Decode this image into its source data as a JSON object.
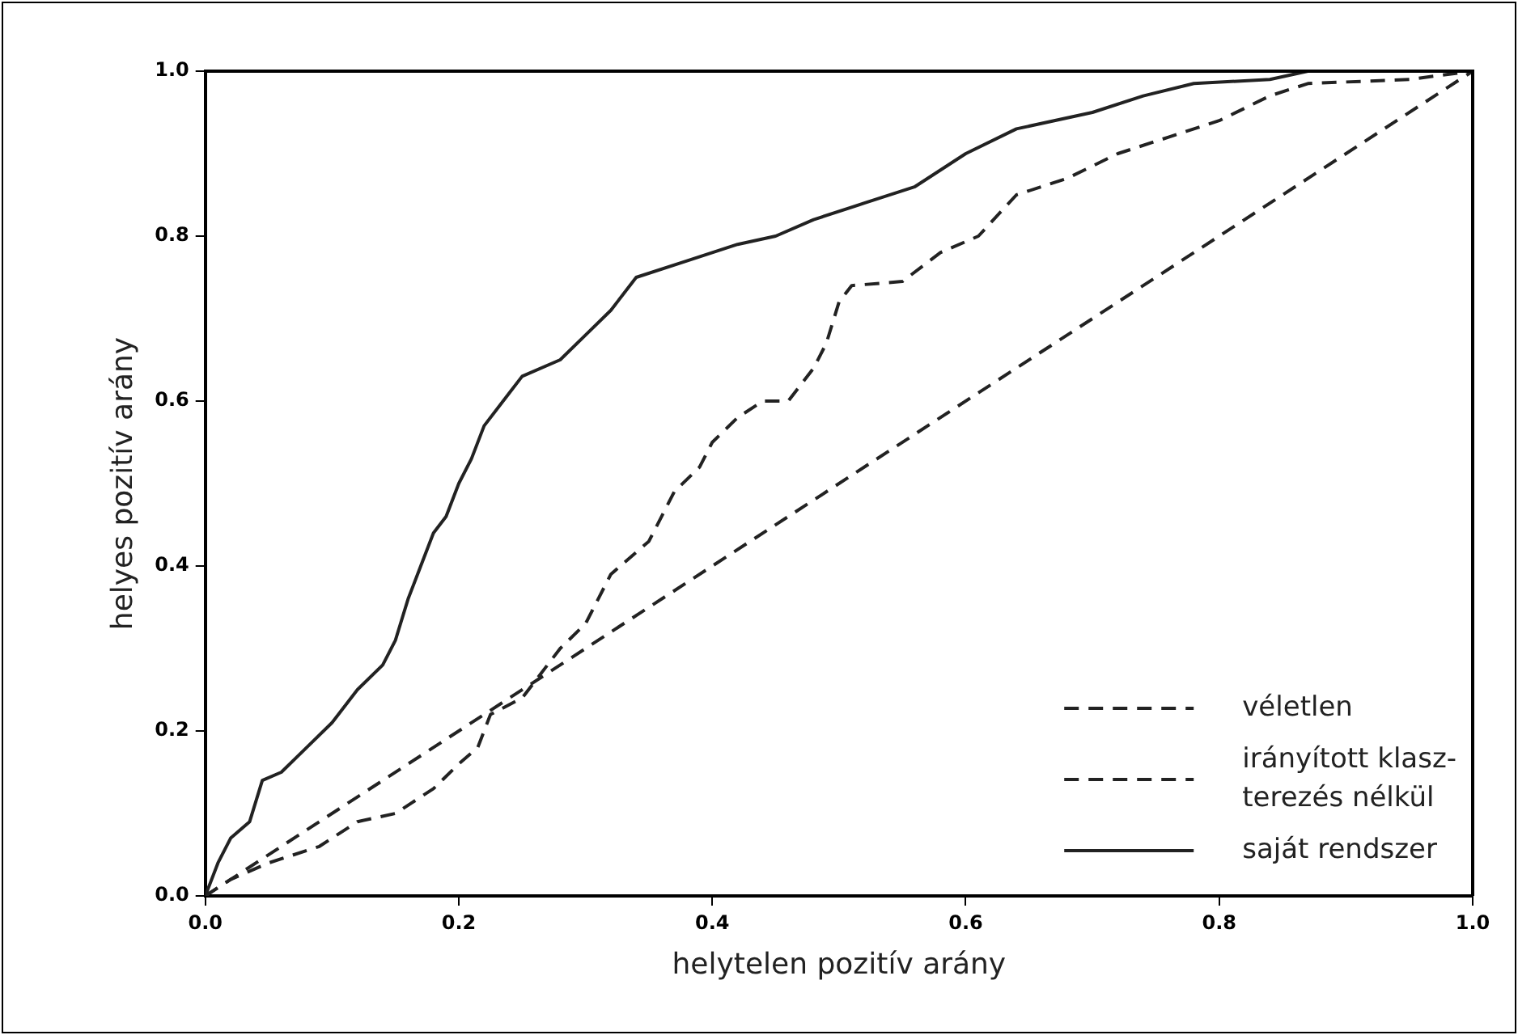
{
  "chart_data": {
    "type": "line",
    "xlabel": "helytelen pozitív arány",
    "ylabel": "helyes pozitív arány",
    "xlim": [
      0,
      1
    ],
    "ylim": [
      0,
      1
    ],
    "xticks": [
      {
        "value": 0,
        "label": "0.0"
      },
      {
        "value": 0.2,
        "label": "0.2"
      },
      {
        "value": 0.4,
        "label": "0.4"
      },
      {
        "value": 0.6,
        "label": "0.6"
      },
      {
        "value": 0.8,
        "label": "0.8"
      },
      {
        "value": 1,
        "label": "1.0"
      }
    ],
    "yticks": [
      {
        "value": 0,
        "label": "0.0"
      },
      {
        "value": 0.2,
        "label": "0.2"
      },
      {
        "value": 0.4,
        "label": "0.4"
      },
      {
        "value": 0.6,
        "label": "0.6"
      },
      {
        "value": 0.8,
        "label": "0.8"
      },
      {
        "value": 1,
        "label": "1.0"
      }
    ],
    "grid": false,
    "legend": "bottom right",
    "marker": "none",
    "series": [
      {
        "name": "véletlen",
        "color": "#222222",
        "line_style": "dashed",
        "x": [
          0,
          1
        ],
        "values": [
          0,
          1
        ]
      },
      {
        "name": "irányított klasz-terezés nélkül",
        "color": "#222222",
        "line_style": "dashed",
        "x": [
          0,
          0.02,
          0.05,
          0.09,
          0.12,
          0.15,
          0.18,
          0.2,
          0.215,
          0.225,
          0.25,
          0.28,
          0.3,
          0.32,
          0.35,
          0.37,
          0.39,
          0.4,
          0.42,
          0.44,
          0.46,
          0.48,
          0.49,
          0.5,
          0.51,
          0.55,
          0.58,
          0.61,
          0.64,
          0.68,
          0.72,
          0.76,
          0.8,
          0.84,
          0.87,
          0.95,
          1
        ],
        "values": [
          0,
          0.02,
          0.04,
          0.06,
          0.09,
          0.1,
          0.13,
          0.16,
          0.18,
          0.22,
          0.24,
          0.3,
          0.33,
          0.39,
          0.43,
          0.49,
          0.52,
          0.55,
          0.58,
          0.6,
          0.6,
          0.64,
          0.67,
          0.72,
          0.74,
          0.745,
          0.78,
          0.8,
          0.85,
          0.87,
          0.9,
          0.92,
          0.94,
          0.97,
          0.985,
          0.99,
          1
        ]
      },
      {
        "name": "saját rendszer",
        "color": "#222222",
        "line_style": "solid",
        "x": [
          0,
          0.01,
          0.02,
          0.035,
          0.045,
          0.06,
          0.08,
          0.1,
          0.12,
          0.14,
          0.15,
          0.16,
          0.17,
          0.18,
          0.19,
          0.2,
          0.21,
          0.22,
          0.24,
          0.25,
          0.28,
          0.3,
          0.32,
          0.34,
          0.38,
          0.42,
          0.45,
          0.48,
          0.52,
          0.56,
          0.6,
          0.64,
          0.7,
          0.74,
          0.78,
          0.84,
          0.87,
          1
        ],
        "values": [
          0,
          0.04,
          0.07,
          0.09,
          0.14,
          0.15,
          0.18,
          0.21,
          0.25,
          0.28,
          0.31,
          0.36,
          0.4,
          0.44,
          0.46,
          0.5,
          0.53,
          0.57,
          0.61,
          0.63,
          0.65,
          0.68,
          0.71,
          0.75,
          0.77,
          0.79,
          0.8,
          0.82,
          0.84,
          0.86,
          0.9,
          0.93,
          0.95,
          0.97,
          0.985,
          0.99,
          1,
          1
        ]
      }
    ]
  }
}
